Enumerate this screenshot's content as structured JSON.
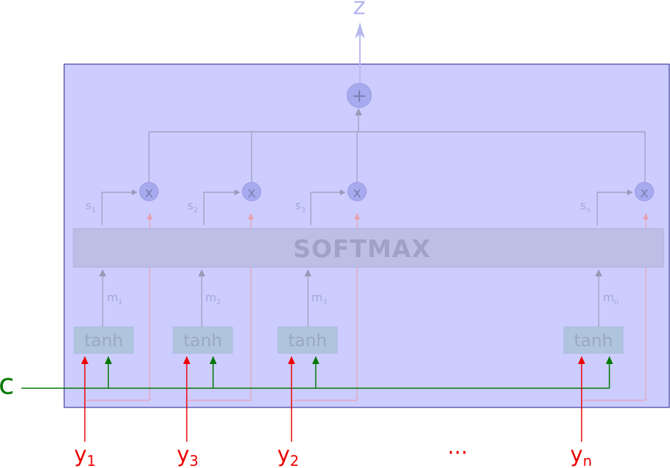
{
  "output_label": "z",
  "sum_symbol": "+",
  "multiply_symbol": "x",
  "softmax_label": "SOFTMAX",
  "context_label": "c",
  "ellipsis": "...",
  "columns": [
    {
      "s": "s",
      "s_sub": "1",
      "m": "m",
      "m_sub": "1",
      "tanh": "tanh",
      "y": "y",
      "y_sub": "1"
    },
    {
      "s": "s",
      "s_sub": "2",
      "m": "m",
      "m_sub": "2",
      "tanh": "tanh",
      "y": "y",
      "y_sub": "3"
    },
    {
      "s": "s",
      "s_sub": "3",
      "m": "m",
      "m_sub": "3",
      "tanh": "tanh",
      "y": "y",
      "y_sub": "2"
    },
    {
      "s": "s",
      "s_sub": "n",
      "m": "m",
      "m_sub": "n",
      "tanh": "tanh",
      "y": "y",
      "y_sub": "n"
    }
  ],
  "colors": {
    "box_fill": "#ccccff",
    "box_stroke": "#1a1a8c",
    "softmax_fill": "#bdbde6",
    "tanh_fill": "#b0c4de",
    "faint_gray": "#a0a0c0",
    "faint_red": "#e8a0b0",
    "red": "#ee0000",
    "green": "#007700",
    "circle_fill": "#a8aaf0"
  }
}
